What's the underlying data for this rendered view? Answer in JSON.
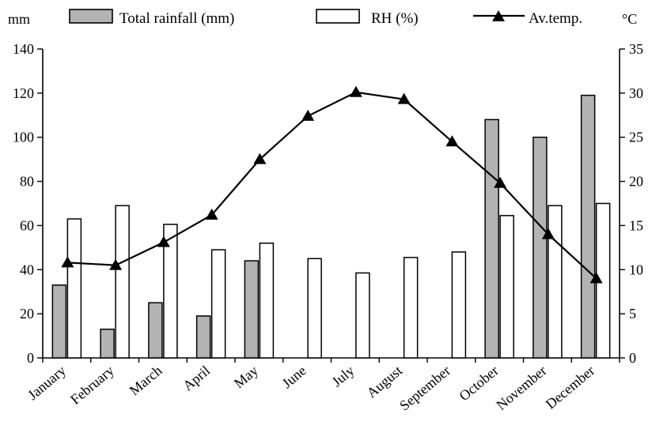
{
  "chart_data": {
    "type": "bar",
    "left_unit": "mm",
    "right_unit": "°C",
    "categories": [
      "January",
      "February",
      "March",
      "April",
      "May",
      "June",
      "July",
      "August",
      "September",
      "October",
      "November",
      "December"
    ],
    "series": [
      {
        "name": "Total rainfall (mm)",
        "kind": "bar",
        "axis": "left",
        "fill": "#b3b3b3",
        "values": [
          33,
          13,
          25,
          19,
          44,
          0,
          0,
          0,
          0,
          108,
          100,
          119
        ]
      },
      {
        "name": "RH (%)",
        "kind": "bar",
        "axis": "left",
        "fill": "#ffffff",
        "values": [
          63,
          69,
          60.5,
          49,
          52,
          45,
          38.5,
          45.5,
          48,
          64.5,
          69,
          70
        ]
      },
      {
        "name": "Av.temp.",
        "kind": "line",
        "axis": "right",
        "marker": "triangle",
        "values": [
          10.8,
          10.5,
          13.1,
          16.2,
          22.5,
          27.4,
          30.1,
          29.3,
          24.5,
          19.8,
          14,
          9
        ]
      }
    ],
    "y_left": {
      "min": 0,
      "max": 140,
      "ticks": [
        "0",
        "20",
        "40",
        "60",
        "80",
        "100",
        "120",
        "140"
      ]
    },
    "y_right": {
      "min": 0,
      "max": 35,
      "ticks": [
        "0",
        "5",
        "10",
        "15",
        "20",
        "25",
        "30",
        "35"
      ]
    },
    "legend_position": "top",
    "grid": false
  }
}
